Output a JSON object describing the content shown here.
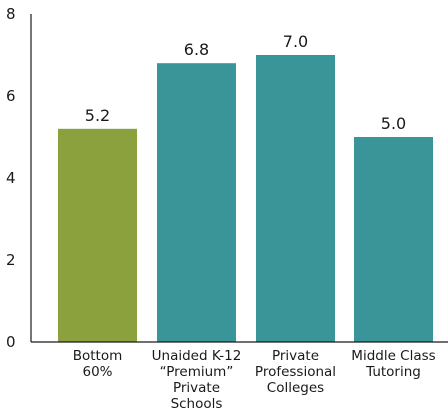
{
  "chart_data": {
    "type": "bar",
    "title": "",
    "xlabel": "",
    "ylabel": "",
    "ylim": [
      0,
      8
    ],
    "yticks": [
      0,
      2,
      4,
      6,
      8
    ],
    "grid": false,
    "legend": "none",
    "categories": [
      "Bottom 60%",
      "Unaided K-12 “Premium” Private Schools",
      "Private Professional Colleges",
      "Middle Class Tutoring"
    ],
    "category_lines": [
      [
        "Bottom",
        "60%"
      ],
      [
        "Unaided K-12",
        "“Premium”",
        "Private",
        "Schools"
      ],
      [
        "Private",
        "Professional",
        "Colleges"
      ],
      [
        "Middle Class",
        "Tutoring"
      ]
    ],
    "values": [
      5.2,
      6.8,
      7.0,
      5.0
    ],
    "value_labels": [
      "5.2",
      "6.8",
      "7.0",
      "5.0"
    ],
    "colors": [
      "#8aa13d",
      "#3a9599",
      "#3a9599",
      "#3a9599"
    ],
    "axis_color": "#1a1a1a"
  }
}
